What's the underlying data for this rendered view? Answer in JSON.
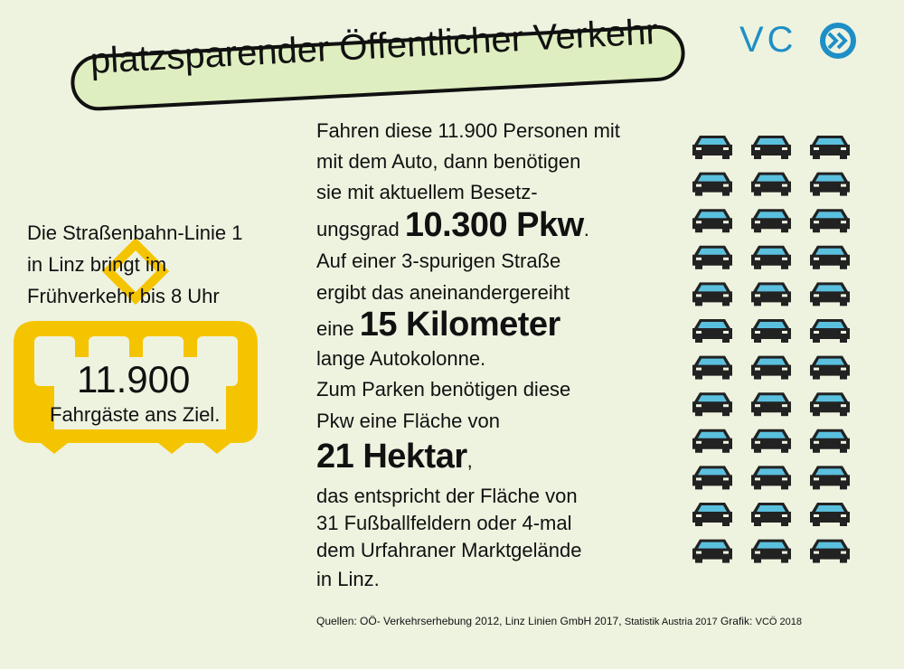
{
  "header": {
    "title": "platzsparender Öffentlicher Verkehr",
    "logo": "VC"
  },
  "tram": {
    "intro": [
      "Die Straßenbahn-Linie 1",
      "in Linz bringt im",
      "Frühverkehr bis 8 Uhr"
    ],
    "number": "11.900",
    "caption": "Fahrgäste ans Ziel."
  },
  "body": {
    "lines": [
      [
        "Fahren diese 11.900 Personen mit"
      ],
      [
        "mit dem Auto, dann benötigen"
      ],
      [
        "sie mit aktuellem Besetz-"
      ],
      [
        "ungsgrad",
        "10.300 Pkw",
        "."
      ],
      [
        "Auf einer 3-spurigen Straße"
      ],
      [
        "ergibt das aneinandergereiht"
      ],
      [
        "eine",
        "15 Kilometer"
      ],
      [
        "lange Autokolonne."
      ],
      [
        "Zum Parken benötigen diese"
      ],
      [
        "Pkw eine Fläche von"
      ],
      [
        "21 Hektar",
        ","
      ],
      [
        "das entspricht der Fläche von"
      ],
      [
        "31 Fußballfeldern oder 4-mal"
      ],
      [
        "dem Urfahraner Marktgelände"
      ],
      [
        "in Linz."
      ]
    ]
  },
  "footer": {
    "sources": [
      "Quellen: OÖ- Verkehrserhebung 2012, Linz Linien GmbH 2017,",
      "Statistik Austria 2017",
      "Grafik:",
      "VCÖ 2018"
    ]
  }
}
